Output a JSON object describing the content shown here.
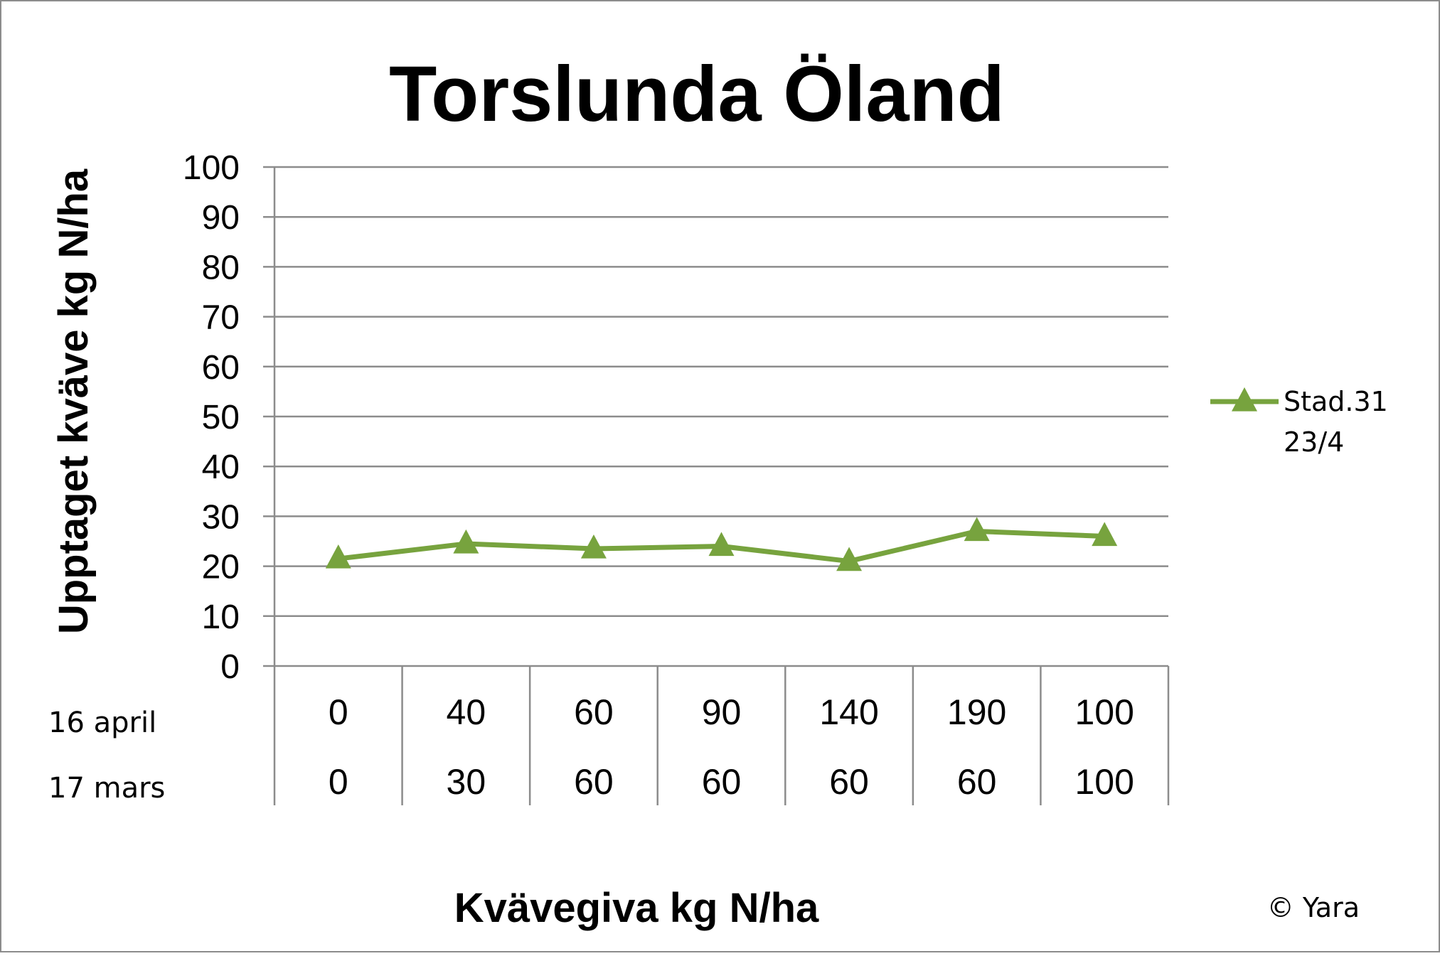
{
  "chart_data": {
    "type": "line",
    "title": "Torslunda Öland",
    "xlabel": "Kvävegiva kg N/ha",
    "ylabel": "Upptaget kväve kg N/ha",
    "ylim": [
      0,
      100
    ],
    "yticks": [
      "0",
      "10",
      "20",
      "30",
      "40",
      "50",
      "60",
      "70",
      "80",
      "90",
      "100"
    ],
    "grid": true,
    "legend_position": "right",
    "category_rows": [
      {
        "label": "16 april",
        "values": [
          "0",
          "40",
          "60",
          "90",
          "140",
          "190",
          "100"
        ]
      },
      {
        "label": "17 mars",
        "values": [
          "0",
          "30",
          "60",
          "60",
          "60",
          "60",
          "100"
        ]
      }
    ],
    "series": [
      {
        "name_lines": [
          "Stad.31",
          "23/4"
        ],
        "color": "#77a33e",
        "marker": "triangle",
        "values": [
          21.5,
          24.5,
          23.5,
          24,
          21,
          27,
          26
        ]
      }
    ],
    "copyright": "© Yara"
  }
}
